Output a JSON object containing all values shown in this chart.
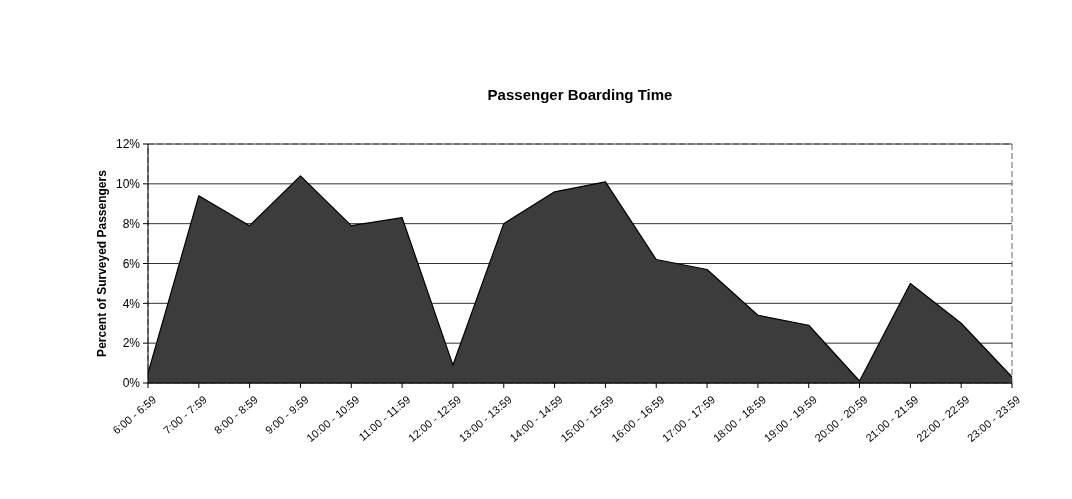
{
  "chart_data": {
    "type": "area",
    "title": "Passenger Boarding Time",
    "ylabel": "Percent of Surveyed Passengers",
    "categories": [
      "6:00 - 6:59",
      "7:00 - 7:59",
      "8:00 - 8:59",
      "9:00 - 9:59",
      "10:00 - 10:59",
      "11:00 - 11:59",
      "12:00 - 12:59",
      "13:00 - 13:59",
      "14:00 - 14:59",
      "15:00 - 15:59",
      "16:00 - 16:59",
      "17:00 - 17:59",
      "18:00 - 18:59",
      "19:00 - 19:59",
      "20:00 - 20:59",
      "21:00 - 21:59",
      "22:00 - 22:59",
      "23:00 - 23:59"
    ],
    "series": [
      {
        "color": "#3c3c3c",
        "values": [
          0.5,
          9.4,
          7.9,
          10.4,
          7.9,
          8.3,
          0.9,
          8.0,
          9.6,
          10.1,
          6.2,
          5.7,
          3.4,
          2.9,
          0.1,
          5.0,
          3.0,
          0.3
        ]
      }
    ],
    "ylim": [
      0,
      12
    ],
    "yticks": [
      {
        "value": 0,
        "label": "0%"
      },
      {
        "value": 2,
        "label": "2%"
      },
      {
        "value": 4,
        "label": "4%"
      },
      {
        "value": 6,
        "label": "6%"
      },
      {
        "value": 8,
        "label": "8%"
      },
      {
        "value": 10,
        "label": "10%"
      },
      {
        "value": 12,
        "label": "12%"
      }
    ],
    "grid": "y"
  }
}
